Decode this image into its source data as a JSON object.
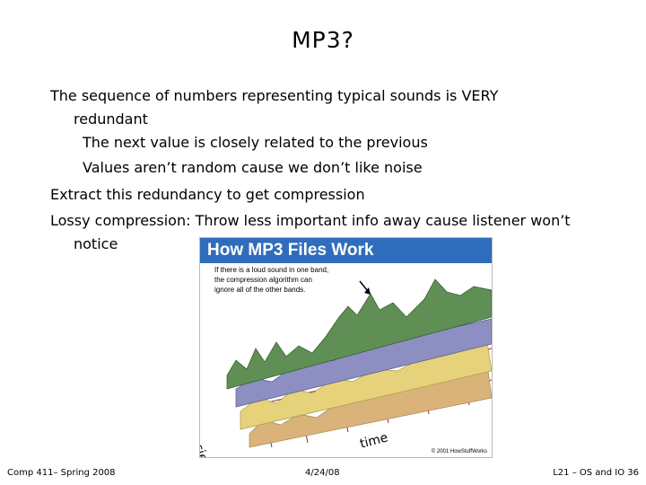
{
  "slide": {
    "title": "MP3?",
    "bullets": [
      {
        "line1": "The sequence of numbers representing typical sounds is VERY",
        "line2": "redundant"
      },
      {
        "line1": "The next value is closely related to the previous"
      },
      {
        "line1": "Values aren’t random cause we don’t like noise"
      },
      {
        "line1": "Extract this redundancy to get compression"
      },
      {
        "line1": "Lossy compression: Throw less important info away cause listener won’t",
        "line2": "notice"
      }
    ]
  },
  "figure": {
    "header": "How MP3 Files Work",
    "note": [
      "If there is a loud sound in one band,",
      "the compression algorithm can",
      "ignore all of the other bands."
    ],
    "axis_frequencies": "frequencies",
    "axis_time": "time",
    "copyright": "© 2001 HowStuffWorks",
    "colors": {
      "header": "#2f6dbc",
      "green": "#5f8f55",
      "purple": "#8d8fc2",
      "yellow": "#e6d27a",
      "tan": "#d9b37a",
      "grid": "#8a2b3a"
    }
  },
  "footer": {
    "left": "Comp 411– Spring 2008",
    "center": "4/24/08",
    "right": "L21 – OS and IO 36"
  }
}
